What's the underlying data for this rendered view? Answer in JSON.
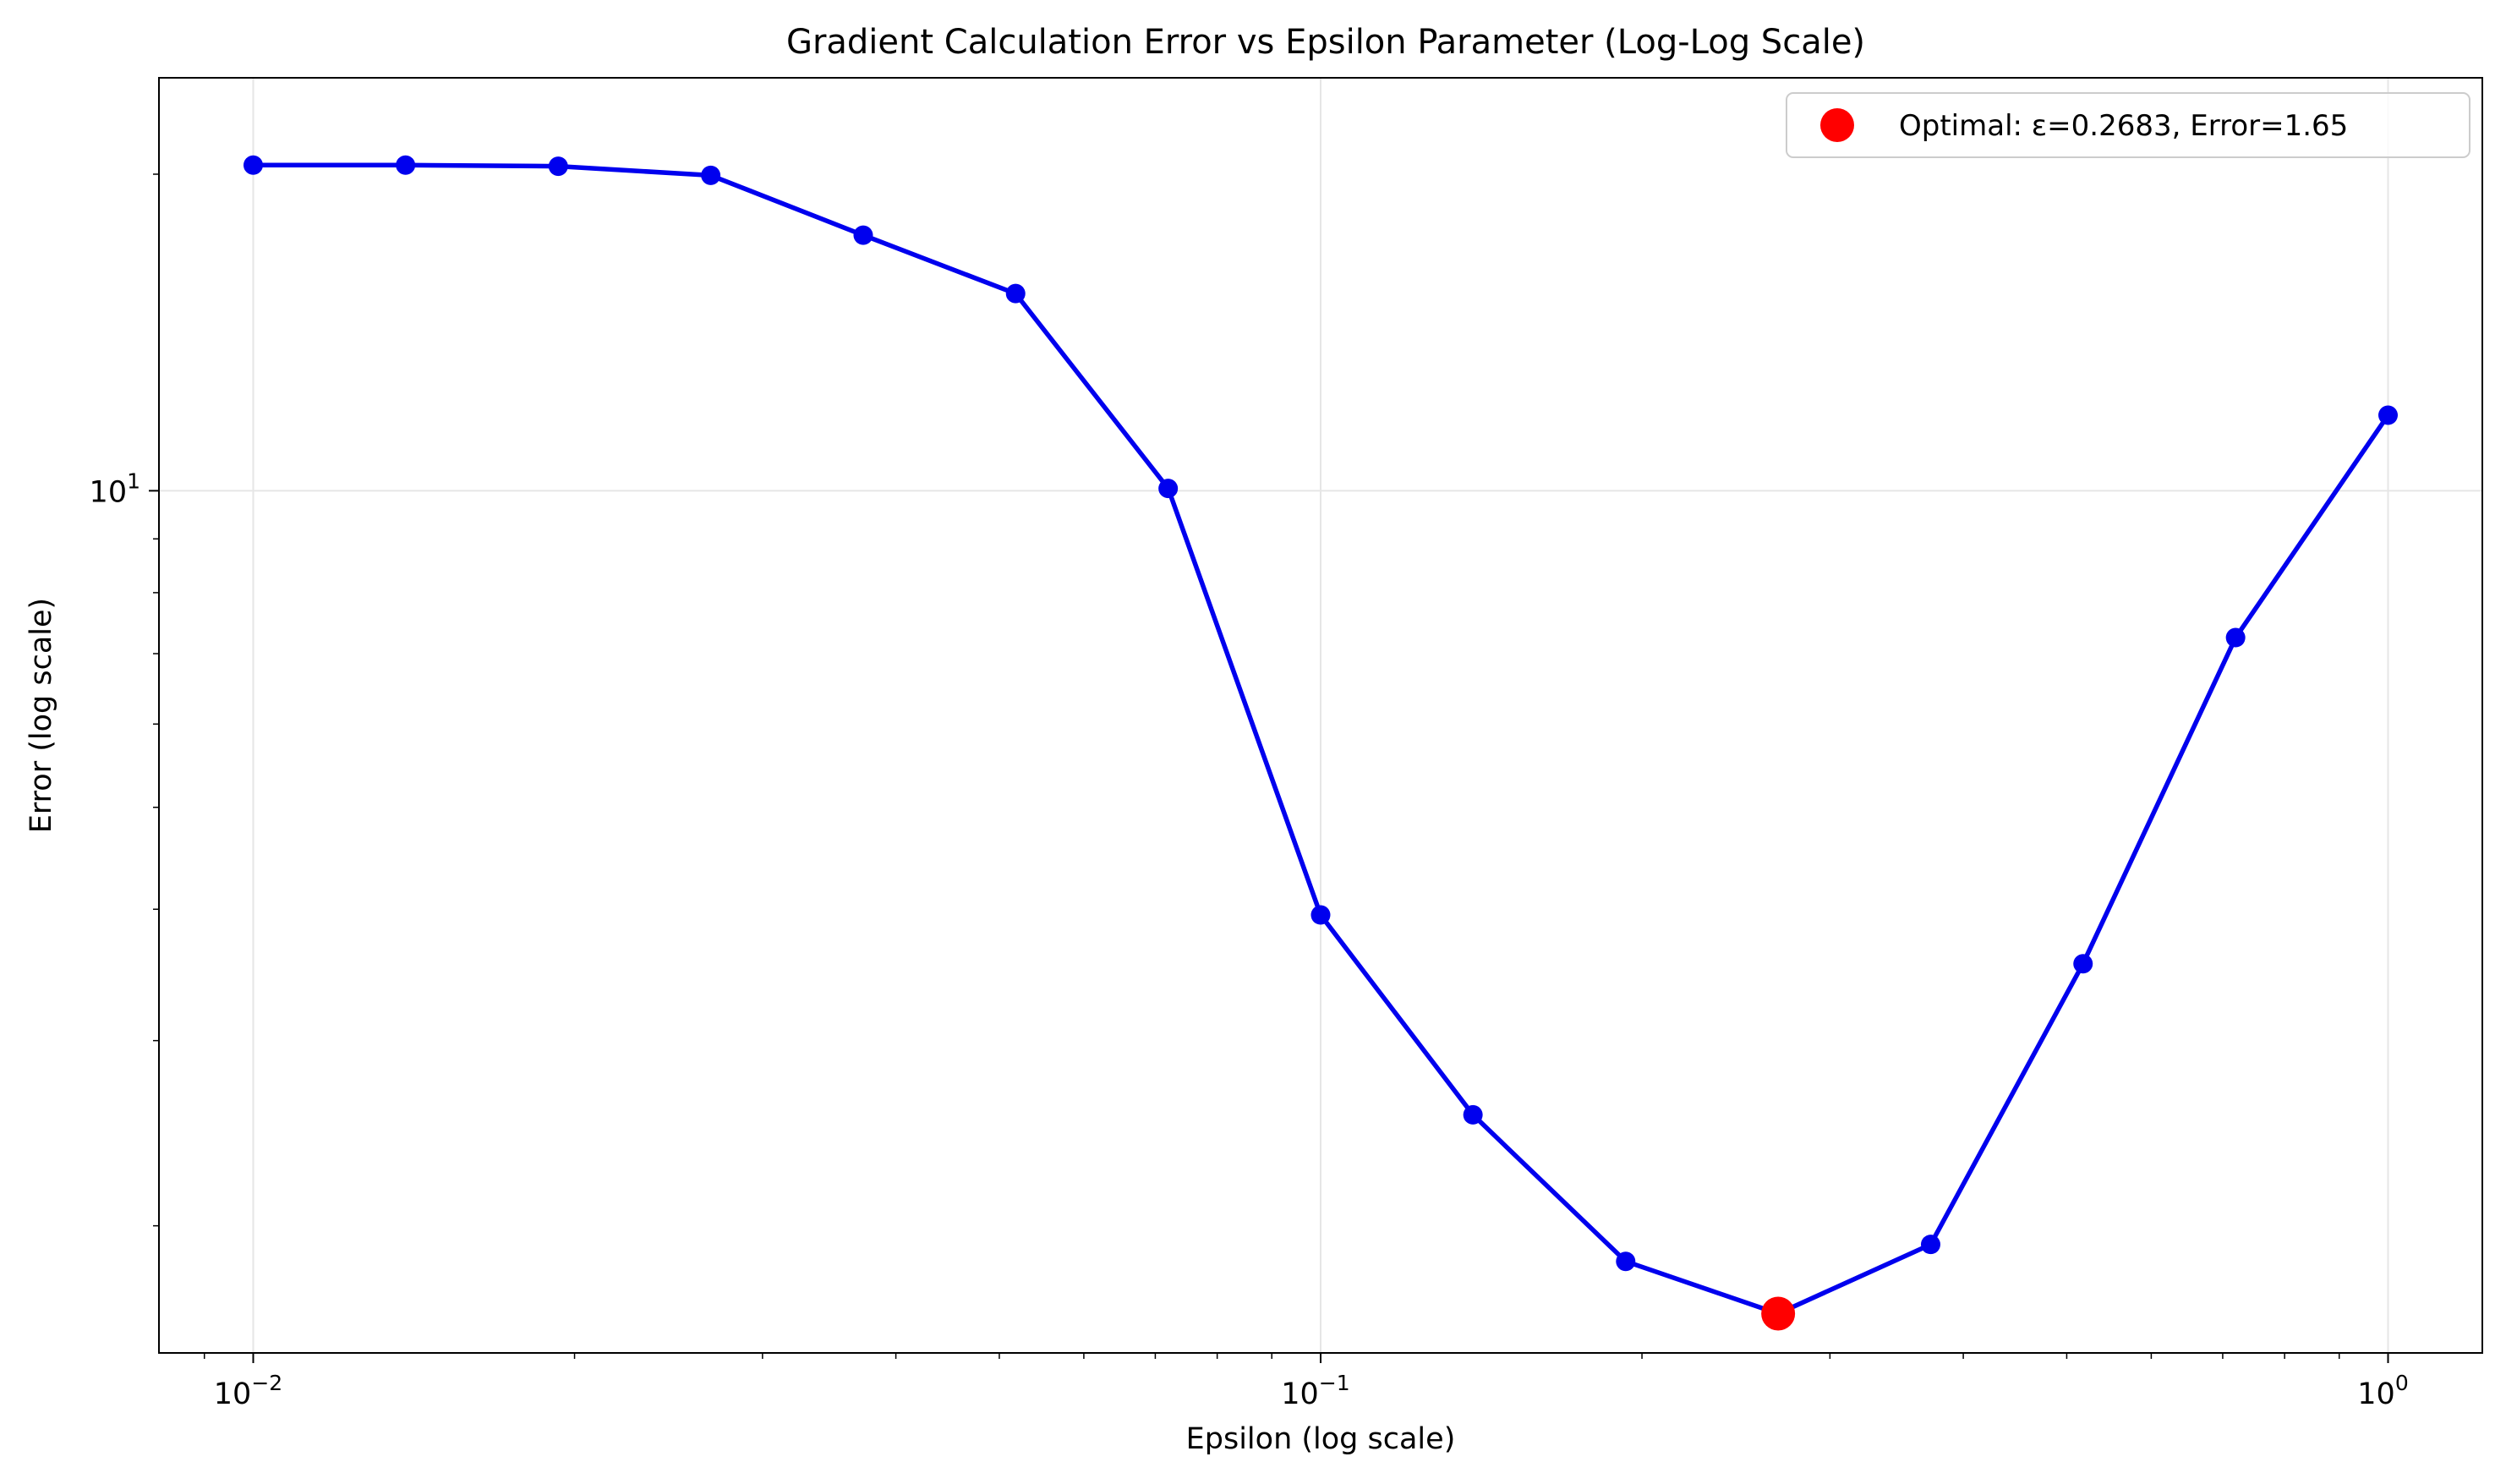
{
  "chart_data": {
    "type": "line",
    "title": "Gradient Calculation Error vs Epsilon Parameter (Log-Log Scale)",
    "xlabel": "Epsilon (log scale)",
    "ylabel": "Error (log scale)",
    "xscale": "log",
    "yscale": "log",
    "xlim": [
      0.00816,
      1.2255
    ],
    "ylim": [
      1.514,
      24.7
    ],
    "grid": true,
    "legend_position": "top-right",
    "x_ticks": [
      {
        "value": 0.01,
        "base": "10",
        "exp": "−2"
      },
      {
        "value": 0.1,
        "base": "10",
        "exp": "−1"
      },
      {
        "value": 1,
        "base": "10",
        "exp": "0"
      }
    ],
    "y_ticks": [
      {
        "value": 10,
        "base": "10",
        "exp": "1"
      }
    ],
    "series": [
      {
        "color": "#0000ee",
        "x": [
          0.01,
          0.01389,
          0.01931,
          0.02683,
          0.03728,
          0.05179,
          0.07197,
          0.1,
          0.1389,
          0.1931,
          0.2683,
          0.3728,
          0.5179,
          0.7197,
          1.0
        ],
        "y": [
          20.4,
          20.4,
          20.35,
          19.95,
          17.5,
          15.4,
          10.05,
          3.95,
          2.55,
          1.85,
          1.65,
          1.92,
          3.55,
          7.25,
          11.8
        ]
      }
    ],
    "highlight": {
      "x": 0.2683,
      "y": 1.65,
      "color": "#ff0000",
      "legend": "Optimal: ε=0.2683, Error=1.65"
    }
  }
}
